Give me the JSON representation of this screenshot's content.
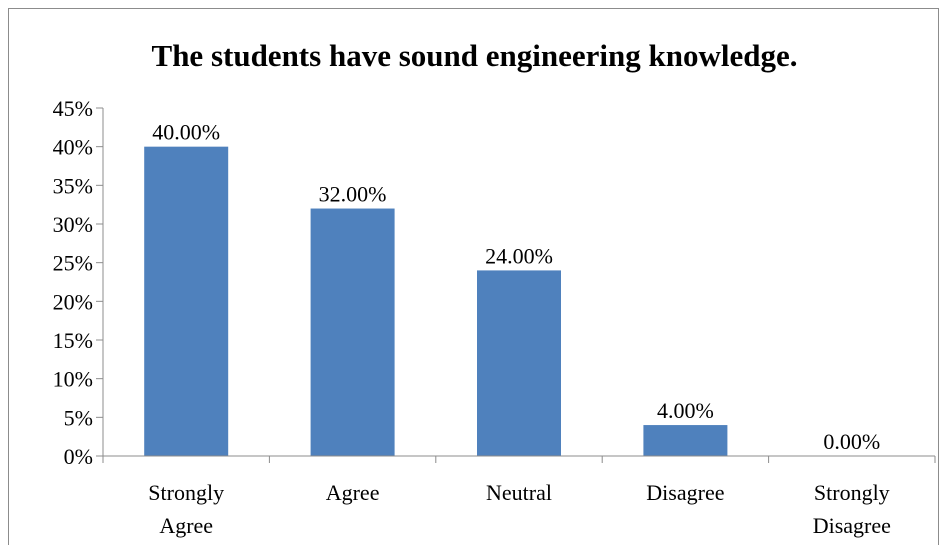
{
  "chart_data": {
    "type": "bar",
    "title": "The students have sound engineering knowledge.",
    "categories": [
      [
        "Strongly",
        "Agree"
      ],
      [
        "Agree"
      ],
      [
        "Neutral"
      ],
      [
        "Disagree"
      ],
      [
        "Strongly",
        "Disagree"
      ]
    ],
    "values": [
      40,
      32,
      24,
      4,
      0
    ],
    "data_labels": [
      "40.00%",
      "32.00%",
      "24.00%",
      "4.00%",
      "0.00%"
    ],
    "y_ticks": [
      "0%",
      "5%",
      "10%",
      "15%",
      "20%",
      "25%",
      "30%",
      "35%",
      "40%",
      "45%"
    ],
    "ylim": [
      0,
      45
    ],
    "ytick_step": 5,
    "bar_color": "#4f81bd",
    "grid": false,
    "legend": "none"
  }
}
